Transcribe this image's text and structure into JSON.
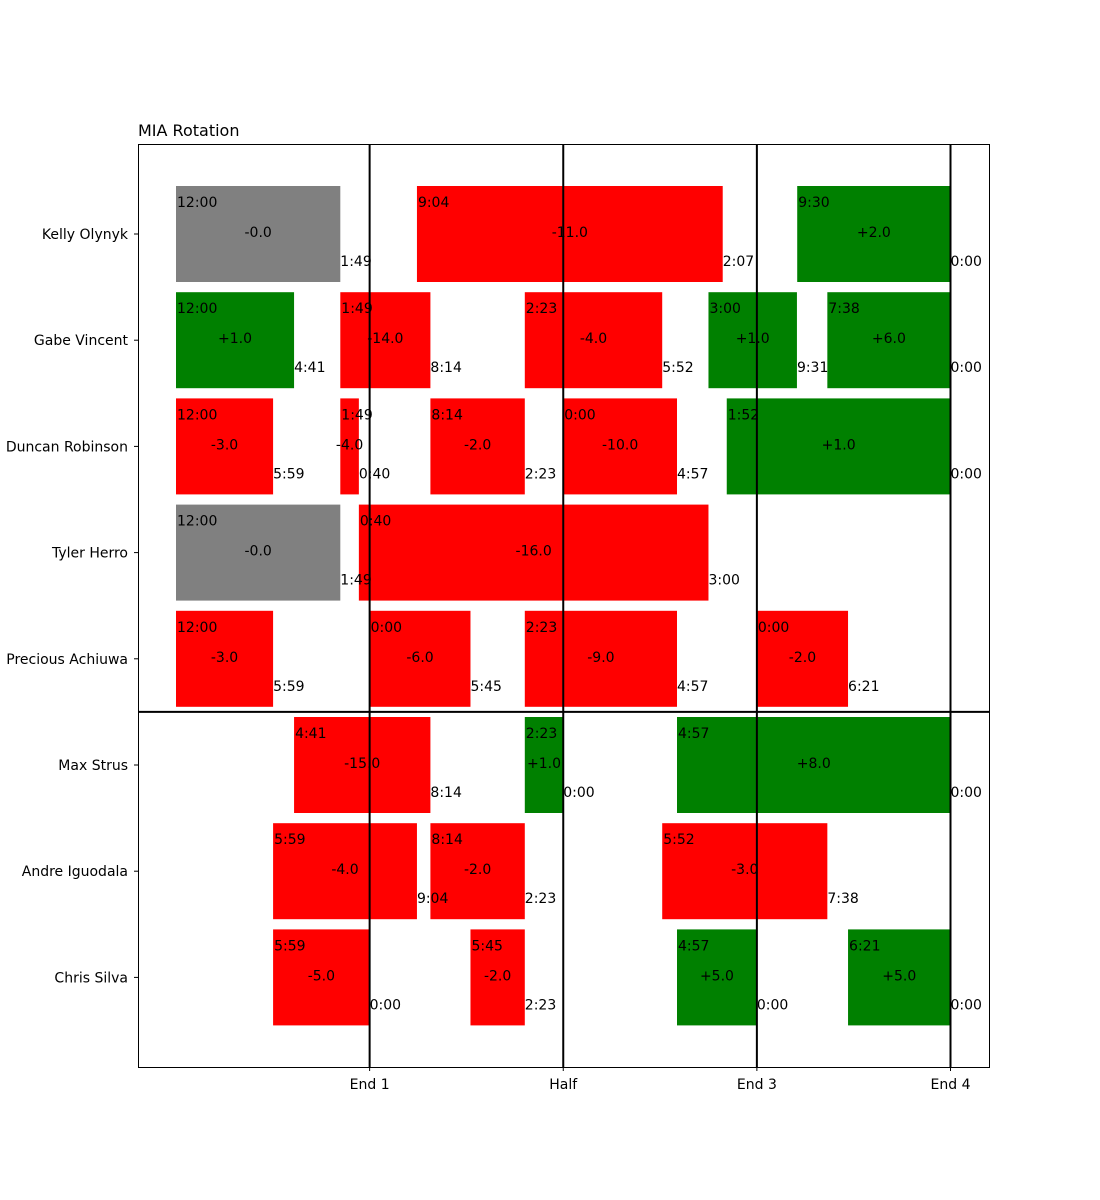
{
  "chart_data": {
    "type": "bar",
    "title": "MIA Rotation",
    "xlabel": "",
    "ylabel": "",
    "x_unit": "game minutes elapsed",
    "xlim": [
      -6,
      48
    ],
    "x_ticks": [
      {
        "value": 12,
        "label": "End 1"
      },
      {
        "value": 24,
        "label": "Half"
      },
      {
        "value": 36,
        "label": "End 3"
      },
      {
        "value": 48,
        "label": "End 4"
      }
    ],
    "divider_after_row": 5,
    "colors": {
      "positive": "#008000",
      "negative": "#ff0000",
      "neutral": "#808080"
    },
    "players": [
      {
        "name": "Kelly Olynyk",
        "stints": [
          {
            "start": 0,
            "end": 10.183,
            "start_label": "12:00",
            "end_label": "1:49",
            "value": "-0.0",
            "sign": "neutral"
          },
          {
            "start": 14.933,
            "end": 33.883,
            "start_label": "9:04",
            "end_label": "2:07",
            "value": "-11.0",
            "sign": "negative"
          },
          {
            "start": 38.5,
            "end": 48,
            "start_label": "9:30",
            "end_label": "0:00",
            "value": "+2.0",
            "sign": "positive"
          }
        ]
      },
      {
        "name": "Gabe Vincent",
        "stints": [
          {
            "start": 0,
            "end": 7.317,
            "start_label": "12:00",
            "end_label": "4:41",
            "value": "+1.0",
            "sign": "positive"
          },
          {
            "start": 10.183,
            "end": 15.767,
            "start_label": "1:49",
            "end_label": "8:14",
            "value": "-14.0",
            "sign": "negative"
          },
          {
            "start": 21.617,
            "end": 30.133,
            "start_label": "2:23",
            "end_label": "5:52",
            "value": "-4.0",
            "sign": "negative"
          },
          {
            "start": 33.0,
            "end": 38.483,
            "start_label": "3:00",
            "end_label": "9:31",
            "value": "+1.0",
            "sign": "positive"
          },
          {
            "start": 40.367,
            "end": 48,
            "start_label": "7:38",
            "end_label": "0:00",
            "value": "+6.0",
            "sign": "positive"
          }
        ]
      },
      {
        "name": "Duncan Robinson",
        "stints": [
          {
            "start": 0,
            "end": 6.017,
            "start_label": "12:00",
            "end_label": "5:59",
            "value": "-3.0",
            "sign": "negative"
          },
          {
            "start": 10.183,
            "end": 11.333,
            "start_label": "1:49",
            "end_label": "0:40",
            "value": "-4.0",
            "sign": "negative"
          },
          {
            "start": 15.767,
            "end": 21.617,
            "start_label": "8:14",
            "end_label": "2:23",
            "value": "-2.0",
            "sign": "negative"
          },
          {
            "start": 24,
            "end": 31.05,
            "start_label": "0:00",
            "end_label": "4:57",
            "value": "-10.0",
            "sign": "negative"
          },
          {
            "start": 34.133,
            "end": 48,
            "start_label": "1:52",
            "end_label": "0:00",
            "value": "+1.0",
            "sign": "positive"
          }
        ]
      },
      {
        "name": "Tyler Herro",
        "stints": [
          {
            "start": 0,
            "end": 10.183,
            "start_label": "12:00",
            "end_label": "1:49",
            "value": "-0.0",
            "sign": "neutral"
          },
          {
            "start": 11.333,
            "end": 33.0,
            "start_label": "0:40",
            "end_label": "3:00",
            "value": "-16.0",
            "sign": "negative"
          }
        ]
      },
      {
        "name": "Precious Achiuwa",
        "stints": [
          {
            "start": 0,
            "end": 6.017,
            "start_label": "12:00",
            "end_label": "5:59",
            "value": "-3.0",
            "sign": "negative"
          },
          {
            "start": 12,
            "end": 18.25,
            "start_label": "0:00",
            "end_label": "5:45",
            "value": "-6.0",
            "sign": "negative"
          },
          {
            "start": 21.617,
            "end": 31.05,
            "start_label": "2:23",
            "end_label": "4:57",
            "value": "-9.0",
            "sign": "negative"
          },
          {
            "start": 36,
            "end": 41.65,
            "start_label": "0:00",
            "end_label": "6:21",
            "value": "-2.0",
            "sign": "negative"
          }
        ]
      },
      {
        "name": "Max Strus",
        "stints": [
          {
            "start": 7.317,
            "end": 15.767,
            "start_label": "4:41",
            "end_label": "8:14",
            "value": "-15.0",
            "sign": "negative"
          },
          {
            "start": 21.617,
            "end": 24,
            "start_label": "2:23",
            "end_label": "0:00",
            "value": "+1.0",
            "sign": "positive"
          },
          {
            "start": 31.05,
            "end": 48,
            "start_label": "4:57",
            "end_label": "0:00",
            "value": "+8.0",
            "sign": "positive"
          }
        ]
      },
      {
        "name": "Andre Iguodala",
        "stints": [
          {
            "start": 6.017,
            "end": 14.933,
            "start_label": "5:59",
            "end_label": "9:04",
            "value": "-4.0",
            "sign": "negative"
          },
          {
            "start": 15.767,
            "end": 21.617,
            "start_label": "8:14",
            "end_label": "2:23",
            "value": "-2.0",
            "sign": "negative"
          },
          {
            "start": 30.133,
            "end": 40.367,
            "start_label": "5:52",
            "end_label": "7:38",
            "value": "-3.0",
            "sign": "negative"
          }
        ]
      },
      {
        "name": "Chris Silva",
        "stints": [
          {
            "start": 6.017,
            "end": 12,
            "start_label": "5:59",
            "end_label": "0:00",
            "value": "-5.0",
            "sign": "negative"
          },
          {
            "start": 18.25,
            "end": 21.617,
            "start_label": "5:45",
            "end_label": "2:23",
            "value": "-2.0",
            "sign": "negative"
          },
          {
            "start": 31.05,
            "end": 36,
            "start_label": "4:57",
            "end_label": "0:00",
            "value": "+5.0",
            "sign": "positive"
          },
          {
            "start": 41.65,
            "end": 48,
            "start_label": "6:21",
            "end_label": "0:00",
            "value": "+5.0",
            "sign": "positive"
          }
        ]
      }
    ]
  }
}
